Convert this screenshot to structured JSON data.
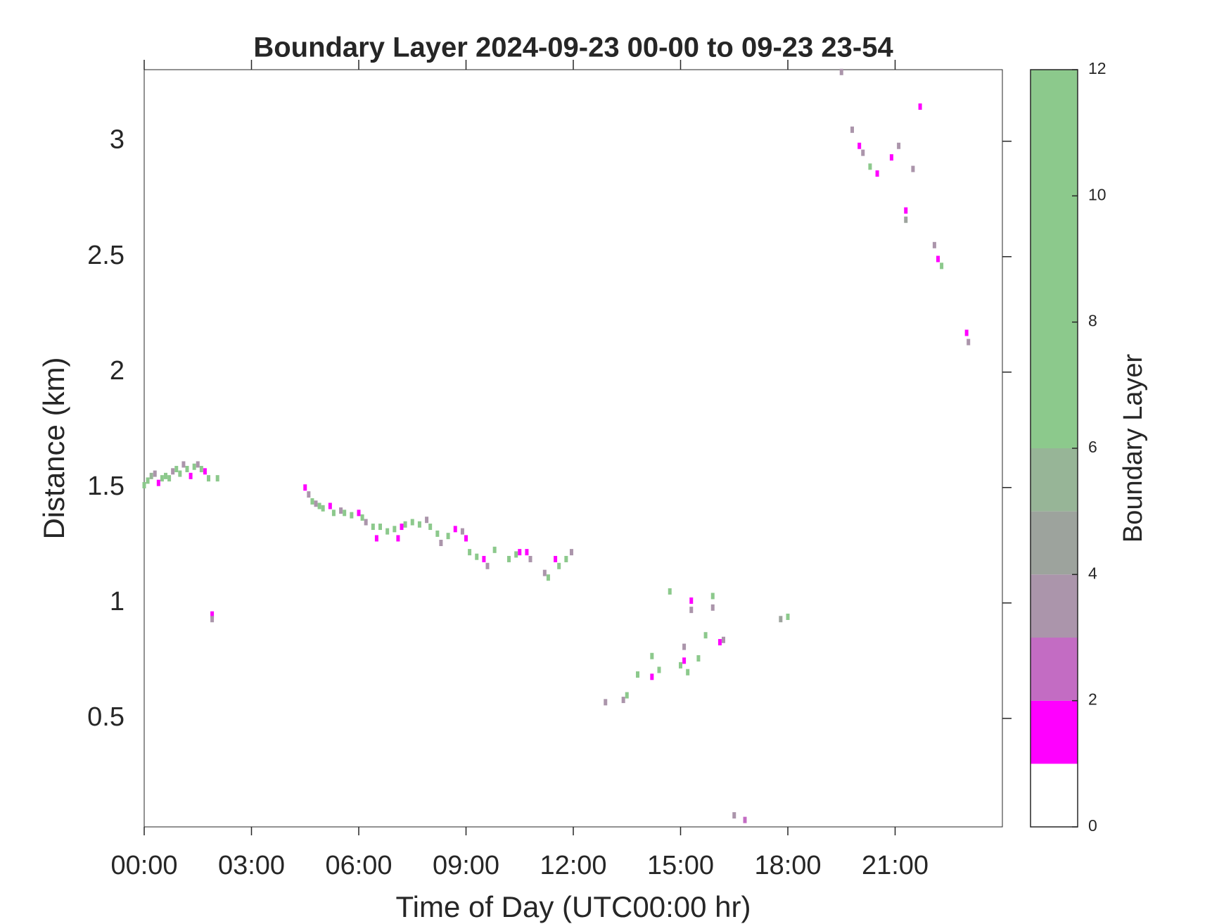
{
  "chart_data": {
    "type": "heatmap-scatter",
    "title": "Boundary Layer 2024-09-23 00-00 to 09-23 23-54",
    "x_label": "Time of Day (UTC00:00 hr)",
    "y_label": "Distance (km)",
    "xlim": [
      0,
      24
    ],
    "xticks": [
      {
        "value": 0,
        "label": "00:00"
      },
      {
        "value": 3,
        "label": "03:00"
      },
      {
        "value": 6,
        "label": "06:00"
      },
      {
        "value": 9,
        "label": "09:00"
      },
      {
        "value": 12,
        "label": "12:00"
      },
      {
        "value": 15,
        "label": "15:00"
      },
      {
        "value": 18,
        "label": "18:00"
      },
      {
        "value": 21,
        "label": "21:00"
      }
    ],
    "ylim": [
      0.03,
      3.31
    ],
    "yticks": [
      0.5,
      1,
      1.5,
      2,
      2.5,
      3
    ],
    "colorbar": {
      "label": "Boundary Layer",
      "lim": [
        0,
        12
      ],
      "ticks": [
        0,
        2,
        4,
        6,
        8,
        10,
        12
      ],
      "boundaries": [
        0,
        1,
        2,
        3,
        4,
        5,
        6,
        12
      ],
      "colors": [
        "#ffffff",
        "#ff00ff",
        "#c36cc3",
        "#ab95ab",
        "#9da39d",
        "#97b597",
        "#8cc98c"
      ]
    },
    "x": [
      0.0,
      0.1,
      0.2,
      0.3,
      0.4,
      0.5,
      0.6,
      0.7,
      0.8,
      0.9,
      1.0,
      1.1,
      1.2,
      1.3,
      1.4,
      1.5,
      1.6,
      1.7,
      1.8,
      1.9,
      1.9,
      2.05,
      4.5,
      4.6,
      4.7,
      4.8,
      4.9,
      5.0,
      5.2,
      5.3,
      5.5,
      5.6,
      5.8,
      6.0,
      6.1,
      6.2,
      6.4,
      6.5,
      6.6,
      6.8,
      7.0,
      7.1,
      7.2,
      7.3,
      7.5,
      7.7,
      7.9,
      8.0,
      8.2,
      8.3,
      8.5,
      8.7,
      8.9,
      9.0,
      9.1,
      9.3,
      9.5,
      9.6,
      9.8,
      10.2,
      10.4,
      10.5,
      10.7,
      10.8,
      11.2,
      11.3,
      11.5,
      11.6,
      11.8,
      11.95,
      12.9,
      13.4,
      13.5,
      13.8,
      14.2,
      14.2,
      14.4,
      14.7,
      15.0,
      15.1,
      15.1,
      15.2,
      15.3,
      15.3,
      15.5,
      15.7,
      15.9,
      15.9,
      16.1,
      16.2,
      16.5,
      16.8,
      17.8,
      18.0,
      19.5,
      19.8,
      20.0,
      20.1,
      20.3,
      20.5,
      20.9,
      21.1,
      21.3,
      21.3,
      21.5,
      21.7,
      22.1,
      22.2,
      22.3,
      23.0,
      23.05
    ],
    "y": [
      1.51,
      1.53,
      1.55,
      1.56,
      1.52,
      1.54,
      1.55,
      1.54,
      1.57,
      1.58,
      1.56,
      1.6,
      1.58,
      1.55,
      1.59,
      1.6,
      1.58,
      1.57,
      1.54,
      0.95,
      0.93,
      1.54,
      1.5,
      1.47,
      1.44,
      1.43,
      1.42,
      1.41,
      1.42,
      1.39,
      1.4,
      1.39,
      1.38,
      1.39,
      1.37,
      1.35,
      1.33,
      1.28,
      1.33,
      1.31,
      1.32,
      1.28,
      1.33,
      1.34,
      1.35,
      1.34,
      1.36,
      1.33,
      1.3,
      1.26,
      1.29,
      1.32,
      1.31,
      1.28,
      1.22,
      1.2,
      1.19,
      1.16,
      1.23,
      1.19,
      1.21,
      1.22,
      1.22,
      1.19,
      1.13,
      1.11,
      1.19,
      1.16,
      1.19,
      1.22,
      0.57,
      0.58,
      0.6,
      0.69,
      0.77,
      0.68,
      0.71,
      1.05,
      0.73,
      0.81,
      0.75,
      0.7,
      1.01,
      0.97,
      0.76,
      0.86,
      1.03,
      0.98,
      0.83,
      0.84,
      0.08,
      0.06,
      0.93,
      0.94,
      3.3,
      3.05,
      2.98,
      2.95,
      2.89,
      2.86,
      2.93,
      2.98,
      2.7,
      2.66,
      2.88,
      3.15,
      2.55,
      2.49,
      2.46,
      2.17,
      2.13
    ],
    "values": [
      8,
      8,
      5.5,
      3.5,
      1.5,
      8,
      8,
      8,
      3.5,
      8,
      8,
      3.5,
      8,
      1.5,
      8,
      3.5,
      8,
      1.5,
      8,
      1.5,
      3.5,
      8,
      1.5,
      3.5,
      8,
      3.5,
      8,
      8,
      1.5,
      8,
      3.5,
      8,
      8,
      1.5,
      8,
      3.5,
      8,
      1.5,
      8,
      8,
      8,
      1.5,
      1.5,
      8,
      8,
      8,
      3.5,
      8,
      8,
      3.5,
      8,
      1.5,
      3.5,
      1.5,
      8,
      8,
      1.5,
      3.5,
      8,
      8,
      8,
      1.5,
      1.5,
      3.5,
      3.5,
      8,
      1.5,
      8,
      8,
      3.5,
      3.5,
      3.5,
      8,
      8,
      8,
      1.5,
      8,
      8,
      8,
      3.5,
      1.5,
      8,
      1.5,
      3.5,
      8,
      8,
      8,
      3.5,
      1.5,
      3.5,
      3.5,
      2.5,
      4.5,
      8,
      3.5,
      3.5,
      1.5,
      3.5,
      8,
      1.5,
      1.5,
      3.5,
      1.5,
      4.5,
      3.5,
      1.5,
      3.5,
      1.5,
      8,
      1.5,
      3.5
    ]
  }
}
